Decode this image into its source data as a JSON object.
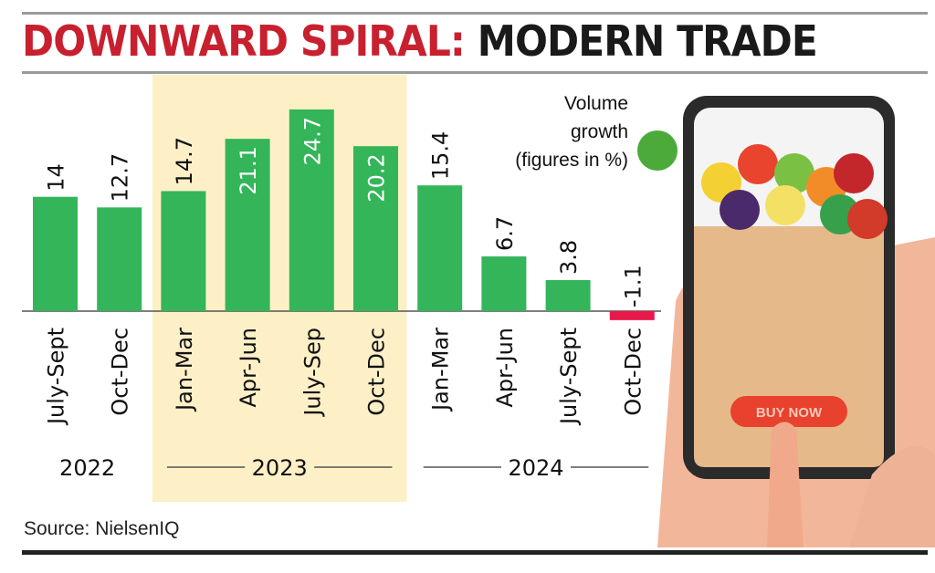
{
  "title": {
    "highlight": "DOWNWARD SPIRAL:",
    "rest": " MODERN TRADE"
  },
  "legend": {
    "line1": "Volume",
    "line2": "growth",
    "line3": "(figures in %)"
  },
  "source": "Source: NielsenIQ",
  "colors": {
    "positive": "#34b55a",
    "negative": "#e8184a",
    "highlight_band": "#fdf0c7",
    "title_red": "#c8202f"
  },
  "illustration": {
    "button_text": "BUY NOW",
    "icon": "phone-shopping-bag-illustration"
  },
  "chart_data": {
    "type": "bar",
    "categories": [
      "July-Sept",
      "Oct-Dec",
      "Jan-Mar",
      "Apr-Jun",
      "July-Sep",
      "Oct-Dec",
      "Jan-Mar",
      "Apr-Jun",
      "July-Sept",
      "Oct-Dec"
    ],
    "years": [
      {
        "label": "2022",
        "categories": [
          0,
          1
        ]
      },
      {
        "label": "2023",
        "categories": [
          2,
          5
        ],
        "highlighted": true
      },
      {
        "label": "2024",
        "categories": [
          6,
          9
        ]
      }
    ],
    "values": [
      14,
      12.7,
      14.7,
      21.1,
      24.7,
      20.2,
      15.4,
      6.7,
      3.8,
      -1.1
    ],
    "value_labels": [
      "14",
      "12.7",
      "14.7",
      "21.1",
      "24.7",
      "20.2",
      "15.4",
      "6.7",
      "3.8",
      "-1.1"
    ],
    "ylabel": "Volume growth (figures in %)",
    "grid": false
  }
}
